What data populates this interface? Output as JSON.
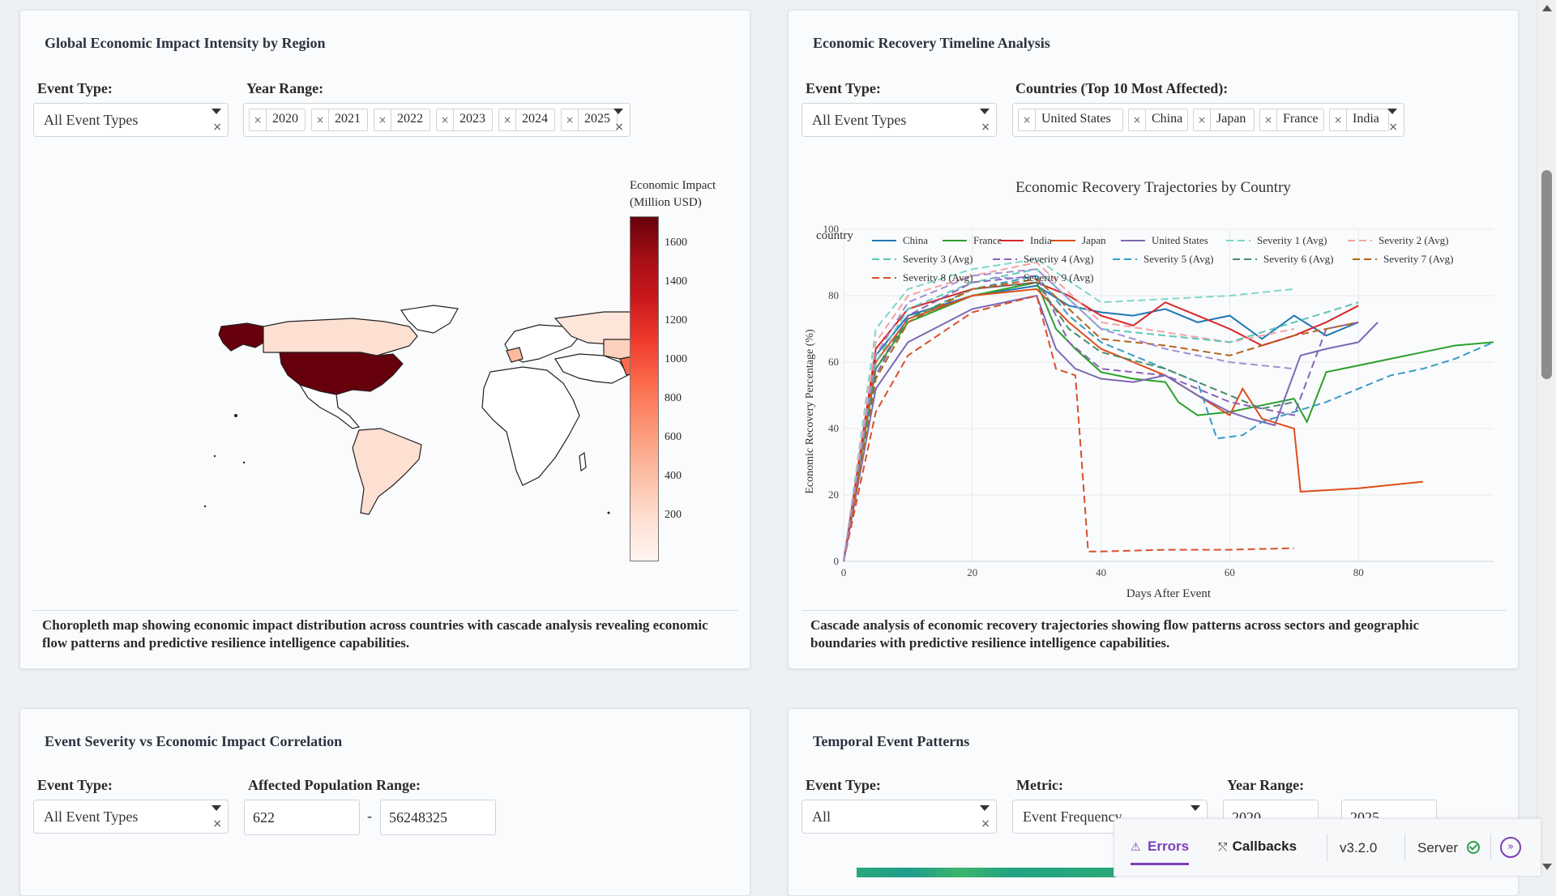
{
  "map_card": {
    "title": "Global Economic Impact Intensity by Region",
    "event_type_label": "Event Type:",
    "event_type_value": "All Event Types",
    "year_range_label": "Year Range:",
    "years": [
      "2020",
      "2021",
      "2022",
      "2023",
      "2024",
      "2025"
    ],
    "colorbar_title": [
      "Economic Impact",
      "(Million USD)"
    ],
    "colorbar_ticks": [
      "1600",
      "1400",
      "1200",
      "1000",
      "800",
      "600",
      "400",
      "200"
    ],
    "description": "Choropleth map showing economic impact distribution across countries with cascade analysis revealing economic flow patterns and predictive resilience intelligence capabilities."
  },
  "timeline_card": {
    "title": "Economic Recovery Timeline Analysis",
    "event_type_label": "Event Type:",
    "event_type_value": "All Event Types",
    "countries_label": "Countries (Top 10 Most Affected):",
    "countries": [
      "United States",
      "China",
      "Japan",
      "France",
      "India"
    ],
    "description": "Cascade analysis of economic recovery trajectories showing flow patterns across sectors and geographic boundaries with predictive resilience intelligence capabilities."
  },
  "chart_data": {
    "type": "line",
    "title": "Economic Recovery Trajectories by Country",
    "xlabel": "Days After Event",
    "ylabel": "Economic Recovery Percentage (%)",
    "xlim": [
      0,
      101
    ],
    "ylim": [
      0,
      100
    ],
    "x_ticks": [
      0,
      20,
      40,
      60,
      80
    ],
    "y_ticks": [
      0,
      20,
      40,
      60,
      80,
      100
    ],
    "legend_title": "country",
    "legend_position": "top",
    "series": [
      {
        "name": "China",
        "color": "#1f77b4",
        "dash": false,
        "x": [
          0,
          5,
          10,
          20,
          30,
          35,
          40,
          45,
          50,
          55,
          60,
          65,
          70,
          75,
          80
        ],
        "y": [
          0,
          62,
          74,
          80,
          83,
          77,
          75,
          74,
          76,
          72,
          74,
          67,
          74,
          68,
          72
        ]
      },
      {
        "name": "France",
        "color": "#2ca02c",
        "dash": false,
        "x": [
          0,
          5,
          10,
          20,
          30,
          33,
          36,
          40,
          45,
          50,
          52,
          55,
          60,
          65,
          70,
          72,
          75,
          80,
          85,
          90,
          95,
          101
        ],
        "y": [
          0,
          58,
          72,
          80,
          84,
          70,
          64,
          57,
          55,
          54,
          48,
          44,
          45,
          47,
          49,
          42,
          57,
          59,
          61,
          63,
          65,
          66
        ]
      },
      {
        "name": "India",
        "color": "#d62728",
        "dash": false,
        "x": [
          0,
          5,
          10,
          20,
          30,
          35,
          40,
          45,
          50,
          55,
          60,
          65,
          70,
          75,
          80
        ],
        "y": [
          0,
          64,
          76,
          82,
          84,
          80,
          74,
          71,
          78,
          74,
          70,
          65,
          68,
          72,
          77
        ]
      },
      {
        "name": "Japan",
        "color": "#e04e1b",
        "dash": false,
        "x": [
          0,
          5,
          10,
          20,
          30,
          35,
          40,
          45,
          50,
          55,
          60,
          62,
          65,
          70,
          71,
          80,
          90
        ],
        "y": [
          0,
          60,
          73,
          80,
          82,
          72,
          64,
          60,
          56,
          50,
          44,
          52,
          43,
          40,
          21,
          22,
          24
        ]
      },
      {
        "name": "United States",
        "color": "#7b68b4",
        "dash": false,
        "x": [
          0,
          5,
          10,
          20,
          30,
          33,
          36,
          40,
          45,
          50,
          55,
          60,
          63,
          67,
          71,
          75,
          80,
          83
        ],
        "y": [
          0,
          52,
          66,
          76,
          80,
          64,
          58,
          55,
          54,
          56,
          50,
          45,
          43,
          41,
          62,
          64,
          66,
          72
        ]
      },
      {
        "name": "Severity 1 (Avg)",
        "color": "#7fd6c8",
        "dash": true,
        "x": [
          0,
          5,
          10,
          20,
          30,
          40,
          50,
          60,
          70
        ],
        "y": [
          0,
          70,
          82,
          88,
          91,
          78,
          79,
          80,
          82
        ]
      },
      {
        "name": "Severity 2 (Avg)",
        "color": "#f5a3a3",
        "dash": true,
        "x": [
          0,
          5,
          10,
          20,
          30,
          40,
          50,
          60,
          70
        ],
        "y": [
          0,
          66,
          80,
          86,
          90,
          72,
          69,
          66,
          70
        ]
      },
      {
        "name": "Severity 3 (Avg)",
        "color": "#5ec6b8",
        "dash": true,
        "x": [
          0,
          5,
          10,
          20,
          30,
          40,
          50,
          60,
          70,
          80
        ],
        "y": [
          0,
          60,
          76,
          84,
          88,
          70,
          68,
          66,
          72,
          78
        ]
      },
      {
        "name": "Severity 4 (Avg)",
        "color": "#8b63b5",
        "dash": true,
        "x": [
          0,
          5,
          10,
          20,
          30,
          35,
          40,
          50,
          55,
          60,
          65,
          70,
          75,
          80
        ],
        "y": [
          0,
          56,
          74,
          84,
          86,
          66,
          58,
          56,
          52,
          48,
          46,
          44,
          70,
          72
        ]
      },
      {
        "name": "Severity 5 (Avg)",
        "color": "#3a9bc4",
        "dash": true,
        "x": [
          0,
          5,
          10,
          20,
          30,
          35,
          40,
          45,
          50,
          55,
          58,
          62,
          65,
          70,
          75,
          80,
          85,
          90,
          95,
          101
        ],
        "y": [
          0,
          55,
          72,
          82,
          86,
          74,
          66,
          62,
          58,
          54,
          37,
          38,
          42,
          45,
          48,
          52,
          56,
          58,
          61,
          66
        ]
      },
      {
        "name": "Severity 6 (Avg)",
        "color": "#4a8c6a",
        "dash": true,
        "x": [
          0,
          5,
          10,
          20,
          30,
          35,
          40,
          50,
          55,
          60,
          65,
          70
        ],
        "y": [
          0,
          58,
          73,
          82,
          84,
          70,
          63,
          58,
          54,
          50,
          46,
          48
        ]
      },
      {
        "name": "Severity 7 (Avg)",
        "color": "#b5651d",
        "dash": true,
        "x": [
          0,
          5,
          10,
          20,
          30,
          40,
          50,
          60,
          70,
          80
        ],
        "y": [
          0,
          55,
          72,
          82,
          85,
          67,
          65,
          62,
          68,
          72
        ]
      },
      {
        "name": "Severity 8 (Avg)",
        "color": "#d9502e",
        "dash": true,
        "x": [
          0,
          5,
          10,
          20,
          30,
          33,
          36,
          37,
          38,
          40,
          50,
          60,
          70
        ],
        "y": [
          0,
          45,
          62,
          75,
          80,
          58,
          56,
          30,
          3,
          3,
          3.5,
          3.5,
          4
        ]
      },
      {
        "name": "Severity 9 (Avg)",
        "color": "#a48fd3",
        "dash": true,
        "x": [
          0,
          5,
          10,
          20,
          30,
          40,
          50,
          60,
          70
        ],
        "y": [
          0,
          62,
          78,
          86,
          88,
          70,
          64,
          60,
          58
        ]
      }
    ]
  },
  "severity_card": {
    "title": "Event Severity vs Economic Impact Correlation",
    "event_type_label": "Event Type:",
    "event_type_value": "All Event Types",
    "population_label": "Affected Population Range:",
    "population_min": "622",
    "population_sep": "-",
    "population_max": "56248325"
  },
  "temporal_card": {
    "title": "Temporal Event Patterns",
    "event_type_label": "Event Type:",
    "event_type_value": "All",
    "metric_label": "Metric:",
    "metric_value": "Event Frequency",
    "year_range_label": "Year Range:",
    "year_start": "2020",
    "year_end": "2025"
  },
  "devtools": {
    "errors_label": "Errors",
    "callbacks_label": "Callbacks",
    "version": "v3.2.0",
    "server_label": "Server"
  },
  "colors": {
    "map_high": "#67000d",
    "map_low": "#fff5f0",
    "errors_accent": "#7b3fb8",
    "server_ok": "#2e9e4f"
  }
}
